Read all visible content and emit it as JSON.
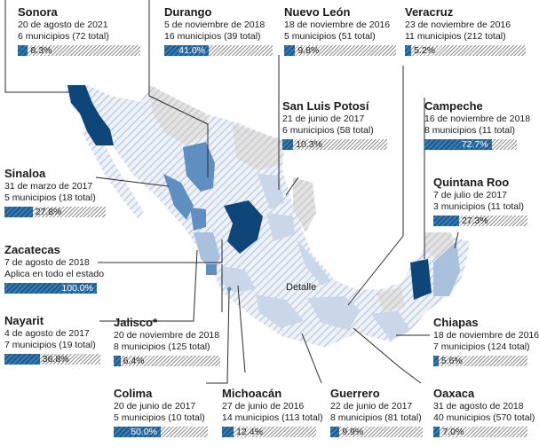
{
  "colors": {
    "dark": "#0e4679",
    "mid": "#5f8fc0",
    "light": "#a9c1dd",
    "pale": "#c9d7e8",
    "gray": "#d0d0d0",
    "bar": "#1a5a8e"
  },
  "detalle": "Detalle",
  "states": [
    {
      "key": "sonora",
      "name": "Sonora",
      "line1": "20 de agosto de 2021",
      "line2": "6 municipios (72 total)",
      "pct": "8.3%",
      "value": 8.3
    },
    {
      "key": "durango",
      "name": "Durango",
      "line1": "5 de noviembre de 2018",
      "line2": "16 municipios (39 total)",
      "pct": "41.0%",
      "value": 41.0
    },
    {
      "key": "nuevo-leon",
      "name": "Nuevo León",
      "line1": "18 de noviembre de 2016",
      "line2": "5 municipios (51 total)",
      "pct": "9.8%",
      "value": 9.8
    },
    {
      "key": "veracruz",
      "name": "Veracruz",
      "line1": "23 de noviembre de 2016",
      "line2": "11 municipios (212 total)",
      "pct": "5.2%",
      "value": 5.2
    },
    {
      "key": "san-luis-potosi",
      "name": "San Luis Potosí",
      "line1": "21 de junio de 2017",
      "line2": "6 municipios (58 total)",
      "pct": "10.3%",
      "value": 10.3
    },
    {
      "key": "campeche",
      "name": "Campeche",
      "line1": "16 de noviembre de 2018",
      "line2": "8 municipios (11 total)",
      "pct": "72.7%",
      "value": 72.7
    },
    {
      "key": "sinaloa",
      "name": "Sinaloa",
      "line1": "31 de marzo de 2017",
      "line2": "5 municipios (18 total)",
      "pct": "27.8%",
      "value": 27.8
    },
    {
      "key": "quintana-roo",
      "name": "Quintana Roo",
      "line1": "7 de julio de 2017",
      "line2": "3 municipios (11 total)",
      "pct": "27.3%",
      "value": 27.3
    },
    {
      "key": "zacatecas",
      "name": "Zacatecas",
      "line1": "7 de agosto de 2018",
      "line2": "Aplica en todo el estado",
      "pct": "100.0%",
      "value": 100.0
    },
    {
      "key": "nayarit",
      "name": "Nayarit",
      "line1": "4 de agosto de 2017",
      "line2": "7 municipios (19 total)",
      "pct": "36.8%",
      "value": 36.8
    },
    {
      "key": "jalisco",
      "name": "Jalisco*",
      "line1": "20 de noviembre de 2018",
      "line2": "8 municipios (125 total)",
      "pct": "6.4%",
      "value": 6.4
    },
    {
      "key": "chiapas",
      "name": "Chiapas",
      "line1": "18 de noviembre de 2016",
      "line2": "7 municipios (124 total)",
      "pct": "5.6%",
      "value": 5.6
    },
    {
      "key": "colima",
      "name": "Colima",
      "line1": "20 de junio de 2017",
      "line2": "5 municipios (10 total)",
      "pct": "50.0%",
      "value": 50.0
    },
    {
      "key": "michoacan",
      "name": "Michoacán",
      "line1": "27 de junio de 2016",
      "line2": "14 municipios (113 total)",
      "pct": "12.4%",
      "value": 12.4
    },
    {
      "key": "guerrero",
      "name": "Guerrero",
      "line1": "22 de junio de 2017",
      "line2": "8 municipios (81 total)",
      "pct": "9.9%",
      "value": 9.9
    },
    {
      "key": "oaxaca",
      "name": "Oaxaca",
      "line1": "31 de agosto de 2018",
      "line2": "40 municipios (570 total)",
      "pct": "7.0%",
      "value": 7.0
    }
  ]
}
